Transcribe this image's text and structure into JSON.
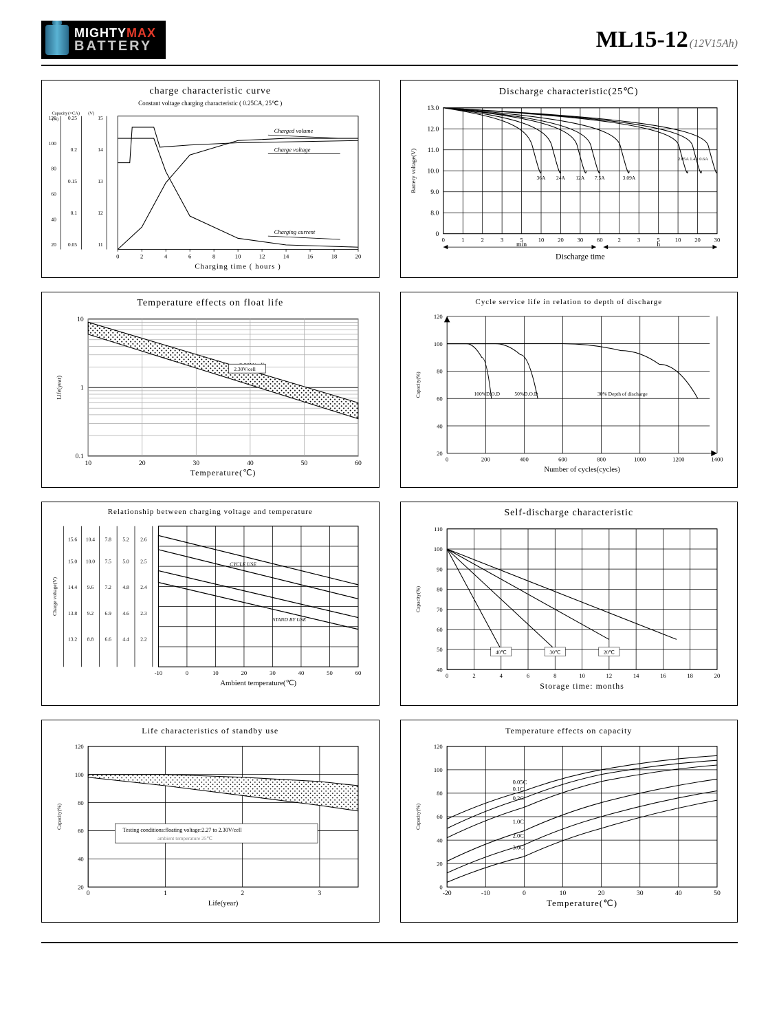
{
  "header": {
    "brand_top": "MIGHTY",
    "brand_top_accent": "MAX",
    "brand_bottom": "BATTERY",
    "model": "ML15-12",
    "model_sub": "(12V15Ah)"
  },
  "charts": {
    "charge_curve": {
      "type": "multi-line",
      "title": "charge characteristic curve",
      "subtitle": "Constant voltage charging characteristic ( 0.25CA, 25℃ )",
      "xlabel": "Charging time ( hours )",
      "x_ticks": [
        0,
        2,
        4,
        6,
        8,
        10,
        12,
        14,
        16,
        18,
        20
      ],
      "left_axis_1": {
        "label": "Capacity(%)",
        "ticks": [
          120,
          100,
          80,
          60,
          40,
          20
        ]
      },
      "left_axis_2": {
        "label": "Current(×CA)",
        "ticks": [
          0.25,
          0.2,
          0.15,
          0.1,
          0.05
        ]
      },
      "left_axis_3": {
        "label": "Voltage(V)",
        "ticks": [
          15.0,
          14.0,
          13.0,
          12.0,
          11.0
        ]
      },
      "series": {
        "charged_volume": {
          "label": "Charged volume",
          "points": [
            [
              0,
              0
            ],
            [
              2,
              20
            ],
            [
              4,
              60
            ],
            [
              6,
              85
            ],
            [
              10,
              98
            ],
            [
              14,
              100
            ],
            [
              20,
              100
            ]
          ]
        },
        "charge_voltage": {
          "label": "Charge voltage",
          "points": [
            [
              0,
              78
            ],
            [
              1,
              78
            ],
            [
              1.2,
              110
            ],
            [
              3,
              110
            ],
            [
              3.5,
              92
            ],
            [
              6,
              94
            ],
            [
              10,
              96
            ],
            [
              20,
              98
            ]
          ]
        },
        "charging_current": {
          "label": "Charging current",
          "points": [
            [
              0,
              100
            ],
            [
              3,
              100
            ],
            [
              4,
              70
            ],
            [
              6,
              30
            ],
            [
              10,
              10
            ],
            [
              14,
              4
            ],
            [
              20,
              2
            ]
          ]
        }
      },
      "colors": {
        "line": "#000000",
        "grid": "#999999",
        "bg": "#ffffff"
      }
    },
    "discharge": {
      "type": "multi-line",
      "title": "Discharge characteristic(25℃)",
      "ylabel": "Battery voltage(V)",
      "xlabel": "Discharge time",
      "x_ticks_labels": [
        "0",
        "1",
        "2",
        "3",
        "5",
        "10",
        "20",
        "30",
        "60",
        "2",
        "3",
        "5",
        "10",
        "20",
        "30"
      ],
      "x_section_labels": [
        "min",
        "h"
      ],
      "y_ticks": [
        13.0,
        12.0,
        11.0,
        10.0,
        9.0,
        8.0,
        0
      ],
      "curves": [
        {
          "label": "36A",
          "end_x": 5
        },
        {
          "label": "24A",
          "end_x": 6
        },
        {
          "label": "12A",
          "end_x": 7.3
        },
        {
          "label": "7.5A",
          "end_x": 8
        },
        {
          "label": "3.09A",
          "end_x": 9.5
        },
        {
          "label": "2.05A",
          "end_x": 12.5
        },
        {
          "label": "1.4A",
          "end_x": 13.2
        },
        {
          "label": "0.6A",
          "end_x": 14
        }
      ],
      "colors": {
        "line": "#000",
        "grid": "#000"
      }
    },
    "float_life": {
      "type": "band",
      "title": "Temperature effects on float life",
      "xlabel": "Temperature(℃)",
      "ylabel": "Life(year)",
      "x_ticks": [
        10,
        20,
        30,
        40,
        50,
        60
      ],
      "y_ticks": [
        10,
        1,
        0.1
      ],
      "y_scale": "log",
      "band_label": "2.30V/cell",
      "band_upper": [
        [
          10,
          9
        ],
        [
          60,
          0.6
        ]
      ],
      "band_lower": [
        [
          10,
          6
        ],
        [
          60,
          0.35
        ]
      ],
      "colors": {
        "line": "#000",
        "grid": "#888"
      }
    },
    "cycle_life": {
      "type": "multi-line",
      "title": "Cycle service life in relation to depth of discharge",
      "xlabel": "Number of cycles(cycles)",
      "ylabel": "Capacity(%)",
      "x_ticks": [
        0,
        200,
        400,
        600,
        800,
        1000,
        1200,
        1400
      ],
      "y_ticks": [
        120,
        100,
        80,
        60,
        40,
        20
      ],
      "curves": [
        {
          "label": "100%D.O.D",
          "points": [
            [
              0,
              100
            ],
            [
              100,
              100
            ],
            [
              180,
              90
            ],
            [
              230,
              60
            ]
          ]
        },
        {
          "label": "50%D.O.D",
          "points": [
            [
              0,
              100
            ],
            [
              250,
              100
            ],
            [
              380,
              92
            ],
            [
              470,
              60
            ]
          ]
        },
        {
          "label": "30% Depth of discharge",
          "points": [
            [
              0,
              100
            ],
            [
              600,
              100
            ],
            [
              900,
              95
            ],
            [
              1100,
              85
            ],
            [
              1300,
              60
            ]
          ]
        }
      ],
      "colors": {
        "line": "#000",
        "grid": "#000"
      }
    },
    "charge_volt_temp": {
      "type": "multi-line-band",
      "title": "Relationship between charging voltage and temperature",
      "xlabel": "Ambient temperature(℃)",
      "ylabel": "Charge voltage(V)",
      "x_ticks": [
        -10,
        0,
        10,
        20,
        30,
        40,
        50,
        60
      ],
      "left_table_cols": [
        "15.6",
        "10.4",
        "7.8",
        "5.2",
        "2.6"
      ],
      "left_table_rows": [
        [
          "15.0",
          "10.0",
          "7.5",
          "5.0",
          "2.5"
        ],
        [
          "14.4",
          "9.6",
          "7.2",
          "4.8",
          "2.4"
        ],
        [
          "13.8",
          "9.2",
          "6.9",
          "4.6",
          "2.3"
        ],
        [
          "13.2",
          "8.8",
          "6.6",
          "4.4",
          "2.2"
        ]
      ],
      "bands": [
        {
          "label": "CYCLE USE",
          "upper": [
            [
              -10,
              112
            ],
            [
              60,
              70
            ]
          ],
          "lower": [
            [
              -10,
              100
            ],
            [
              60,
              58
            ]
          ]
        },
        {
          "label": "STAND BY USE",
          "upper": [
            [
              -10,
              82
            ],
            [
              60,
              42
            ]
          ],
          "lower": [
            [
              -10,
              72
            ],
            [
              60,
              32
            ]
          ]
        }
      ],
      "colors": {
        "line": "#000",
        "grid": "#000"
      }
    },
    "self_discharge": {
      "type": "multi-line",
      "title": "Self-discharge characteristic",
      "xlabel": "Storage time: months",
      "ylabel": "Capacity(%)",
      "x_ticks": [
        0,
        2,
        4,
        6,
        8,
        10,
        12,
        14,
        16,
        18,
        20
      ],
      "y_ticks": [
        110,
        100,
        90,
        80,
        70,
        60,
        50,
        40
      ],
      "curves": [
        {
          "label": "40℃",
          "points": [
            [
              0,
              100
            ],
            [
              4,
              50
            ]
          ]
        },
        {
          "label": "30℃",
          "points": [
            [
              0,
              100
            ],
            [
              8,
              50
            ]
          ]
        },
        {
          "label": "20℃",
          "points": [
            [
              0,
              100
            ],
            [
              12,
              55
            ]
          ]
        },
        {
          "label": "",
          "points": [
            [
              0,
              100
            ],
            [
              17,
              55
            ]
          ]
        }
      ],
      "colors": {
        "line": "#000",
        "grid": "#000"
      }
    },
    "standby_life": {
      "type": "band",
      "title": "Life characteristics of standby use",
      "xlabel": "Life(year)",
      "ylabel": "Capacity(%)",
      "x_ticks": [
        0,
        1,
        2,
        3
      ],
      "y_ticks": [
        120,
        100,
        80,
        60,
        40,
        20
      ],
      "note": "Testing conditions:floating voltage:2.27 to 2.30V/cell",
      "note2": "ambient temperature 25℃",
      "band_upper": [
        [
          0,
          100
        ],
        [
          1,
          100
        ],
        [
          2,
          98
        ],
        [
          3,
          95
        ],
        [
          3.5,
          92
        ]
      ],
      "band_lower": [
        [
          0,
          98
        ],
        [
          1,
          92
        ],
        [
          2,
          85
        ],
        [
          3,
          78
        ],
        [
          3.5,
          74
        ]
      ],
      "colors": {
        "line": "#000",
        "grid": "#000"
      }
    },
    "temp_capacity": {
      "type": "multi-line",
      "title": "Temperature effects on capacity",
      "xlabel": "Temperature(℃)",
      "ylabel": "Capacity(%)",
      "x_ticks": [
        -20,
        -10,
        0,
        10,
        20,
        30,
        40,
        50
      ],
      "y_ticks": [
        120,
        100,
        80,
        60,
        40,
        20,
        0
      ],
      "curves": [
        {
          "label": "0.05C",
          "points": [
            [
              -20,
              58
            ],
            [
              0,
              82
            ],
            [
              20,
              100
            ],
            [
              50,
              112
            ]
          ]
        },
        {
          "label": "0.1C",
          "points": [
            [
              -20,
              50
            ],
            [
              0,
              76
            ],
            [
              20,
              96
            ],
            [
              50,
              108
            ]
          ]
        },
        {
          "label": "0.2C",
          "points": [
            [
              -20,
              42
            ],
            [
              0,
              68
            ],
            [
              20,
              90
            ],
            [
              50,
              104
            ]
          ]
        },
        {
          "label": "1.0C",
          "points": [
            [
              -20,
              22
            ],
            [
              0,
              48
            ],
            [
              20,
              72
            ],
            [
              50,
              92
            ]
          ]
        },
        {
          "label": "2.0C",
          "points": [
            [
              -20,
              12
            ],
            [
              0,
              36
            ],
            [
              20,
              60
            ],
            [
              50,
              82
            ]
          ]
        },
        {
          "label": "3.0C",
          "points": [
            [
              -20,
              4
            ],
            [
              0,
              26
            ],
            [
              20,
              50
            ],
            [
              50,
              74
            ]
          ]
        }
      ],
      "colors": {
        "line": "#000",
        "grid": "#000"
      }
    }
  }
}
